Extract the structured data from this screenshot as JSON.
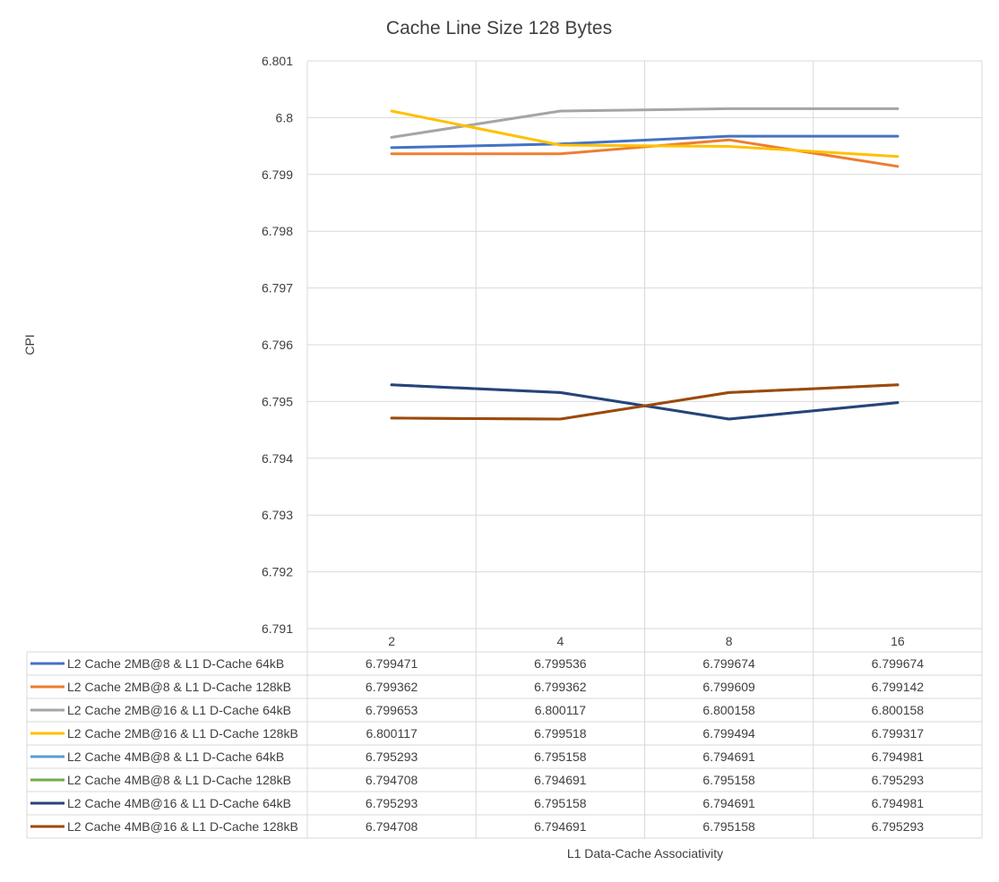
{
  "chart_data": {
    "type": "line",
    "title": "Cache Line Size 128 Bytes",
    "xlabel": "L1 Data-Cache Associativity",
    "ylabel": "CPI",
    "categories": [
      "2",
      "4",
      "8",
      "16"
    ],
    "ylim": [
      6.791,
      6.801
    ],
    "yticks": [
      "6.791",
      "6.792",
      "6.793",
      "6.794",
      "6.795",
      "6.796",
      "6.797",
      "6.798",
      "6.799",
      "6.8",
      "6.801"
    ],
    "grid": true,
    "legend": "data-table-bottom",
    "series": [
      {
        "name": "L2 Cache 2MB@8 & L1 D-Cache 64kB",
        "color": "#4472C4",
        "values": [
          6.799471,
          6.799536,
          6.799674,
          6.799674
        ],
        "labels": [
          "6.799471",
          "6.799536",
          "6.799674",
          "6.799674"
        ]
      },
      {
        "name": "L2 Cache 2MB@8 & L1 D-Cache 128kB",
        "color": "#ED7D31",
        "values": [
          6.799362,
          6.799362,
          6.799609,
          6.799142
        ],
        "labels": [
          "6.799362",
          "6.799362",
          "6.799609",
          "6.799142"
        ]
      },
      {
        "name": "L2 Cache 2MB@16 & L1 D-Cache 64kB",
        "color": "#A5A5A5",
        "values": [
          6.799653,
          6.800117,
          6.800158,
          6.800158
        ],
        "labels": [
          "6.799653",
          "6.800117",
          "6.800158",
          "6.800158"
        ]
      },
      {
        "name": "L2 Cache 2MB@16 & L1 D-Cache 128kB",
        "color": "#FFC000",
        "values": [
          6.800117,
          6.799518,
          6.799494,
          6.799317
        ],
        "labels": [
          "6.800117",
          "6.799518",
          "6.799494",
          "6.799317"
        ]
      },
      {
        "name": "L2 Cache 4MB@8 & L1 D-Cache 64kB",
        "color": "#5B9BD5",
        "values": [
          6.795293,
          6.795158,
          6.794691,
          6.794981
        ],
        "labels": [
          "6.795293",
          "6.795158",
          "6.794691",
          "6.794981"
        ]
      },
      {
        "name": "L2 Cache 4MB@8 & L1 D-Cache 128kB",
        "color": "#70AD47",
        "values": [
          6.794708,
          6.794691,
          6.795158,
          6.795293
        ],
        "labels": [
          "6.794708",
          "6.794691",
          "6.795158",
          "6.795293"
        ]
      },
      {
        "name": "L2 Cache 4MB@16 & L1 D-Cache 64kB",
        "color": "#264478",
        "values": [
          6.795293,
          6.795158,
          6.794691,
          6.794981
        ],
        "labels": [
          "6.795293",
          "6.795158",
          "6.794691",
          "6.794981"
        ]
      },
      {
        "name": "L2 Cache 4MB@16 & L1 D-Cache 128kB",
        "color": "#9E480E",
        "values": [
          6.794708,
          6.794691,
          6.795158,
          6.795293
        ],
        "labels": [
          "6.794708",
          "6.794691",
          "6.795158",
          "6.795293"
        ]
      }
    ]
  }
}
